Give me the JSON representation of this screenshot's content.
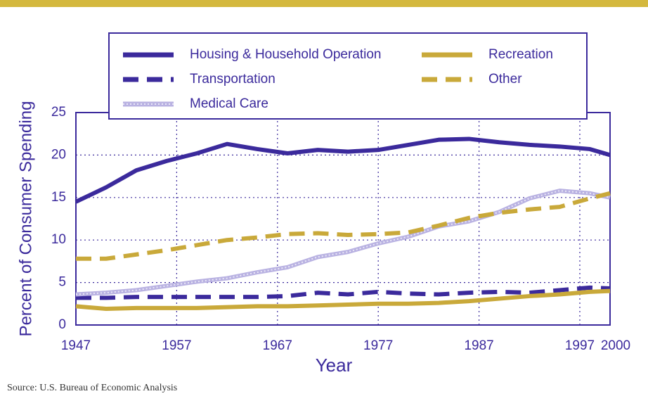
{
  "chart_data": {
    "type": "line",
    "x_label": "Year",
    "y_label": "Percent of Consumer Spending",
    "source": "Source: U.S. Bureau of Economic Analysis",
    "x": [
      1947,
      1950,
      1953,
      1956,
      1959,
      1962,
      1965,
      1968,
      1971,
      1974,
      1977,
      1980,
      1983,
      1986,
      1989,
      1992,
      1995,
      1998,
      2000
    ],
    "series": [
      {
        "name": "Housing & Household Operation",
        "color": "#3b2a9c",
        "style": "solid",
        "values": [
          14.5,
          16.2,
          18.2,
          19.3,
          20.2,
          21.3,
          20.7,
          20.2,
          20.6,
          20.4,
          20.6,
          21.2,
          21.8,
          21.9,
          21.5,
          21.2,
          21.0,
          20.7,
          20.0
        ]
      },
      {
        "name": "Transportation",
        "color": "#3b2a9c",
        "style": "dashed",
        "values": [
          3.2,
          3.2,
          3.3,
          3.3,
          3.3,
          3.3,
          3.3,
          3.4,
          3.8,
          3.6,
          3.9,
          3.7,
          3.6,
          3.8,
          3.9,
          3.8,
          4.1,
          4.4,
          4.3
        ]
      },
      {
        "name": "Medical Care",
        "color": "#b9b2e2",
        "style": "hatched",
        "values": [
          3.6,
          3.8,
          4.1,
          4.6,
          5.1,
          5.5,
          6.2,
          6.8,
          8.0,
          8.6,
          9.6,
          10.4,
          11.6,
          12.2,
          13.3,
          14.9,
          15.8,
          15.5,
          15.0
        ]
      },
      {
        "name": "Recreation",
        "color": "#c9a93a",
        "style": "solid",
        "values": [
          2.2,
          1.9,
          2.0,
          2.0,
          2.0,
          2.1,
          2.2,
          2.2,
          2.3,
          2.4,
          2.5,
          2.5,
          2.6,
          2.8,
          3.1,
          3.4,
          3.6,
          3.9,
          4.0
        ]
      },
      {
        "name": "Other",
        "color": "#c9a93a",
        "style": "dashed",
        "values": [
          7.8,
          7.8,
          8.3,
          8.8,
          9.4,
          10.0,
          10.3,
          10.7,
          10.8,
          10.6,
          10.7,
          10.9,
          11.7,
          12.6,
          13.2,
          13.6,
          13.9,
          14.9,
          15.5
        ]
      }
    ],
    "xlim": [
      1947,
      2000
    ],
    "xticks": [
      1947,
      1957,
      1967,
      1977,
      1987,
      1997,
      2000
    ],
    "ylim": [
      0,
      25
    ],
    "yticks": [
      0,
      5,
      10,
      15,
      20,
      25
    ],
    "grid": true
  }
}
